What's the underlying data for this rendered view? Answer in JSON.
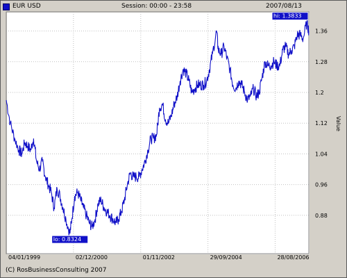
{
  "header": {
    "symbol": "EUR  USD",
    "session": "Session: 00:00 - 23:58",
    "date": "2007/08/13"
  },
  "footer": {
    "copyright": "(C) RosBusinessConsulting 2007"
  },
  "colors": {
    "series": "#1010c8",
    "grid": "#c0c0c0",
    "frame": "#d4d0c8",
    "plot_bg": "#ffffff"
  },
  "chart_data": {
    "type": "line",
    "ylabel": "Value",
    "xlabel": "",
    "ylim": [
      0.78,
      1.41
    ],
    "y_ticks": [
      0.88,
      0.96,
      1.04,
      1.12,
      1.2,
      1.28,
      1.36
    ],
    "y_tick_labels": [
      "0.88",
      "0.96",
      "1.04",
      "1.12",
      "1.2",
      "1.28",
      "1.36"
    ],
    "x_range": [
      "1999-01-04",
      "2007-08-13"
    ],
    "x_tick_dates": [
      "1999-01-04",
      "2000-12-02",
      "2002-11-01",
      "2004-09-29",
      "2006-08-28"
    ],
    "x_tick_labels": [
      "04/01/1999",
      "02/12/2000",
      "01/11/2002",
      "29/09/2004",
      "28/08/2006"
    ],
    "grid": true,
    "annotations": {
      "low": {
        "label": "lo: 0.8324",
        "date": "2000-10-26",
        "value": 0.8324
      },
      "high": {
        "label": "hi: 1.3833",
        "date": "2007-07-24",
        "value": 1.3833
      }
    },
    "series": [
      {
        "x": [
          "1999-01-04",
          "1999-02-15",
          "1999-04-01",
          "1999-05-15",
          "1999-06-15",
          "1999-07-15",
          "1999-08-15",
          "1999-09-15",
          "1999-10-15",
          "1999-11-15",
          "1999-12-15",
          "2000-01-15",
          "2000-02-15",
          "2000-03-15",
          "2000-04-15",
          "2000-05-15",
          "2000-06-15",
          "2000-07-15",
          "2000-08-15",
          "2000-09-15",
          "2000-10-26",
          "2000-11-15",
          "2000-12-15",
          "2001-01-15",
          "2001-02-15",
          "2001-03-15",
          "2001-04-15",
          "2001-05-15",
          "2001-06-15",
          "2001-07-15",
          "2001-08-15",
          "2001-09-15",
          "2001-10-15",
          "2001-11-15",
          "2001-12-15",
          "2002-01-15",
          "2002-02-15",
          "2002-03-15",
          "2002-04-15",
          "2002-05-15",
          "2002-06-15",
          "2002-07-15",
          "2002-08-15",
          "2002-09-15",
          "2002-10-15",
          "2002-11-15",
          "2002-12-15",
          "2003-01-15",
          "2003-02-15",
          "2003-03-15",
          "2003-04-15",
          "2003-05-15",
          "2003-06-15",
          "2003-07-15",
          "2003-08-15",
          "2003-09-15",
          "2003-10-15",
          "2003-11-15",
          "2003-12-15",
          "2004-01-15",
          "2004-02-15",
          "2004-03-15",
          "2004-04-15",
          "2004-05-15",
          "2004-06-15",
          "2004-07-15",
          "2004-08-15",
          "2004-09-15",
          "2004-10-15",
          "2004-11-15",
          "2004-12-28",
          "2005-01-15",
          "2005-02-15",
          "2005-03-15",
          "2005-04-15",
          "2005-05-15",
          "2005-06-15",
          "2005-07-15",
          "2005-08-15",
          "2005-09-15",
          "2005-10-15",
          "2005-11-15",
          "2005-12-15",
          "2006-01-15",
          "2006-02-15",
          "2006-03-15",
          "2006-04-15",
          "2006-05-15",
          "2006-06-15",
          "2006-07-15",
          "2006-08-15",
          "2006-09-15",
          "2006-10-15",
          "2006-11-15",
          "2006-12-15",
          "2007-01-15",
          "2007-02-15",
          "2007-03-15",
          "2007-04-15",
          "2007-05-15",
          "2007-06-15",
          "2007-07-24",
          "2007-08-13"
        ],
        "values": [
          1.18,
          1.12,
          1.08,
          1.05,
          1.04,
          1.07,
          1.06,
          1.05,
          1.08,
          1.02,
          1.0,
          1.02,
          0.98,
          0.96,
          0.94,
          0.9,
          0.95,
          0.93,
          0.9,
          0.87,
          0.8324,
          0.87,
          0.93,
          0.94,
          0.92,
          0.9,
          0.88,
          0.86,
          0.85,
          0.87,
          0.91,
          0.92,
          0.9,
          0.89,
          0.88,
          0.87,
          0.86,
          0.87,
          0.89,
          0.92,
          0.96,
          0.99,
          0.98,
          0.98,
          0.98,
          1.0,
          1.02,
          1.05,
          1.08,
          1.08,
          1.09,
          1.16,
          1.17,
          1.13,
          1.12,
          1.14,
          1.17,
          1.19,
          1.23,
          1.26,
          1.25,
          1.23,
          1.2,
          1.21,
          1.22,
          1.22,
          1.22,
          1.23,
          1.26,
          1.3,
          1.36,
          1.31,
          1.3,
          1.32,
          1.29,
          1.26,
          1.22,
          1.21,
          1.23,
          1.22,
          1.2,
          1.18,
          1.19,
          1.21,
          1.19,
          1.2,
          1.24,
          1.28,
          1.27,
          1.27,
          1.28,
          1.27,
          1.27,
          1.31,
          1.32,
          1.3,
          1.31,
          1.32,
          1.35,
          1.35,
          1.34,
          1.3833,
          1.36
        ]
      }
    ]
  }
}
